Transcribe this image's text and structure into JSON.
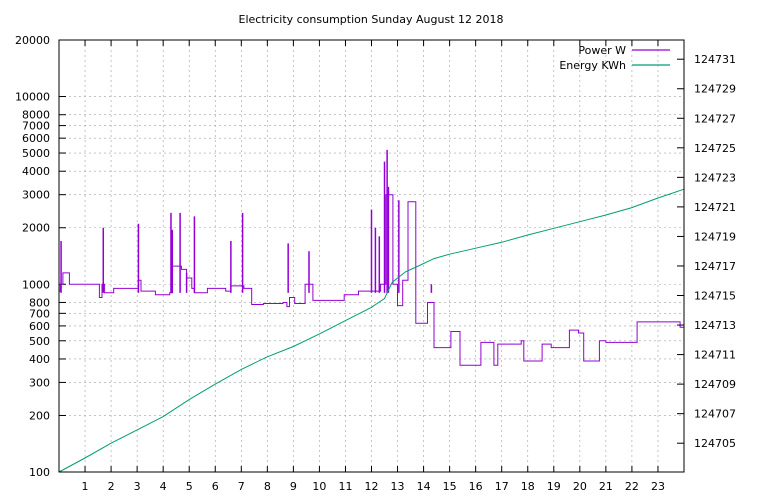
{
  "chart_data": {
    "type": "line",
    "title": "Electricity consumption Sunday August 12 2018",
    "xlabel": "",
    "ylabel": "",
    "grid": true,
    "legend_position": "top-right",
    "x_range": [
      0,
      24
    ],
    "x_ticks": [
      1,
      2,
      3,
      4,
      5,
      6,
      7,
      8,
      9,
      10,
      11,
      12,
      13,
      14,
      15,
      16,
      17,
      18,
      19,
      20,
      21,
      22,
      23
    ],
    "y_left": {
      "scale": "log",
      "range": [
        100,
        20000
      ],
      "ticks": [
        100,
        200,
        300,
        400,
        500,
        600,
        700,
        800,
        1000,
        2000,
        3000,
        4000,
        5000,
        6000,
        7000,
        8000,
        10000,
        20000
      ]
    },
    "y_right": {
      "scale": "linear",
      "range": [
        124703.05,
        124732.3
      ],
      "ticks": [
        124705,
        124707,
        124709,
        124711,
        124713,
        124715,
        124717,
        124719,
        124721,
        124723,
        124725,
        124727,
        124729,
        124731
      ]
    },
    "series": [
      {
        "name": "Power W",
        "axis": "left",
        "color": "#9400d3",
        "step": true,
        "spikes": [
          [
            0.08,
            1700
          ],
          [
            1.7,
            2000
          ],
          [
            3.05,
            2100
          ],
          [
            4.3,
            2400
          ],
          [
            4.35,
            1950
          ],
          [
            4.65,
            2400
          ],
          [
            4.9,
            1150
          ],
          [
            5.2,
            2300
          ],
          [
            6.6,
            1700
          ],
          [
            7.05,
            2400
          ],
          [
            8.8,
            1650
          ],
          [
            9.6,
            1500
          ],
          [
            12.0,
            2500
          ],
          [
            12.15,
            2000
          ],
          [
            12.3,
            1800
          ],
          [
            12.5,
            4500
          ],
          [
            12.6,
            5200
          ],
          [
            12.65,
            3300
          ],
          [
            13.05,
            2800
          ],
          [
            14.3,
            1000
          ]
        ],
        "points": [
          [
            0,
            920
          ],
          [
            0.05,
            1000
          ],
          [
            0.15,
            1150
          ],
          [
            0.4,
            1000
          ],
          [
            1.5,
            1000
          ],
          [
            1.55,
            850
          ],
          [
            1.65,
            1000
          ],
          [
            1.75,
            900
          ],
          [
            2.1,
            950
          ],
          [
            2.95,
            950
          ],
          [
            3.05,
            1050
          ],
          [
            3.15,
            920
          ],
          [
            3.7,
            880
          ],
          [
            4.25,
            900
          ],
          [
            4.35,
            1250
          ],
          [
            4.7,
            1200
          ],
          [
            4.9,
            1080
          ],
          [
            5.1,
            950
          ],
          [
            5.2,
            900
          ],
          [
            5.5,
            900
          ],
          [
            5.7,
            950
          ],
          [
            6.4,
            920
          ],
          [
            6.6,
            980
          ],
          [
            7.1,
            950
          ],
          [
            7.4,
            780
          ],
          [
            7.85,
            790
          ],
          [
            8.6,
            800
          ],
          [
            8.75,
            760
          ],
          [
            8.85,
            850
          ],
          [
            9.05,
            790
          ],
          [
            9.4,
            790
          ],
          [
            9.45,
            1000
          ],
          [
            9.75,
            820
          ],
          [
            10.9,
            820
          ],
          [
            10.95,
            880
          ],
          [
            11.5,
            920
          ],
          [
            12.0,
            920
          ],
          [
            12.35,
            1000
          ],
          [
            12.55,
            3000
          ],
          [
            12.8,
            3000
          ],
          [
            12.82,
            1000
          ],
          [
            13.0,
            770
          ],
          [
            13.2,
            1050
          ],
          [
            13.4,
            2750
          ],
          [
            13.7,
            620
          ],
          [
            14.05,
            620
          ],
          [
            14.15,
            800
          ],
          [
            14.4,
            460
          ],
          [
            14.95,
            460
          ],
          [
            15.05,
            560
          ],
          [
            15.4,
            370
          ],
          [
            16.1,
            370
          ],
          [
            16.2,
            490
          ],
          [
            16.6,
            490
          ],
          [
            16.7,
            370
          ],
          [
            16.85,
            480
          ],
          [
            17.75,
            500
          ],
          [
            17.85,
            390
          ],
          [
            18.4,
            390
          ],
          [
            18.55,
            480
          ],
          [
            18.9,
            460
          ],
          [
            19.55,
            460
          ],
          [
            19.6,
            570
          ],
          [
            19.95,
            550
          ],
          [
            20.15,
            390
          ],
          [
            20.7,
            390
          ],
          [
            20.75,
            500
          ],
          [
            21.0,
            490
          ],
          [
            22.1,
            490
          ],
          [
            22.2,
            630
          ],
          [
            23.8,
            630
          ],
          [
            23.85,
            590
          ],
          [
            24.0,
            590
          ]
        ]
      },
      {
        "name": "Energy KWh",
        "axis": "right",
        "color": "#009e73",
        "step": false,
        "points": [
          [
            0,
            124703.05
          ],
          [
            1,
            124704.0
          ],
          [
            2,
            124705.0
          ],
          [
            3,
            124705.9
          ],
          [
            4,
            124706.8
          ],
          [
            5,
            124707.95
          ],
          [
            6,
            124709.0
          ],
          [
            7,
            124710.0
          ],
          [
            8,
            124710.85
          ],
          [
            9,
            124711.55
          ],
          [
            10,
            124712.4
          ],
          [
            11,
            124713.3
          ],
          [
            12,
            124714.2
          ],
          [
            12.5,
            124714.8
          ],
          [
            12.8,
            124715.9
          ],
          [
            13.3,
            124716.6
          ],
          [
            13.8,
            124717.0
          ],
          [
            14.4,
            124717.5
          ],
          [
            15,
            124717.8
          ],
          [
            16,
            124718.2
          ],
          [
            17,
            124718.6
          ],
          [
            18,
            124719.1
          ],
          [
            19,
            124719.55
          ],
          [
            20,
            124720.0
          ],
          [
            21,
            124720.45
          ],
          [
            22,
            124720.95
          ],
          [
            23,
            124721.6
          ],
          [
            24,
            124722.2
          ]
        ]
      }
    ]
  }
}
